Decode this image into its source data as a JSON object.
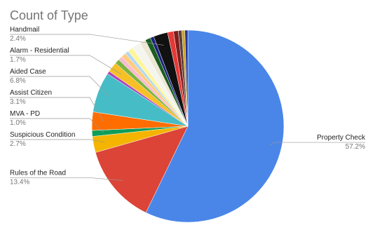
{
  "chart_data": {
    "type": "pie",
    "title": "Count of Type",
    "categories": [
      "Property Check",
      "Rules of the Road",
      "Suspicious Condition",
      "MVA - PD",
      "Assist Citizen",
      "Aided Case",
      null,
      "Alarm - Residential",
      null,
      null,
      null,
      null,
      null,
      null,
      null,
      null,
      null,
      "Handmail",
      null,
      null,
      null,
      null,
      null
    ],
    "values": [
      57.2,
      13.4,
      2.7,
      1.0,
      3.1,
      6.8,
      0.5,
      1.7,
      0.8,
      0.7,
      0.8,
      0.6,
      0.9,
      1.5,
      1.0,
      0.9,
      0.6,
      2.4,
      1.0,
      0.8,
      0.6,
      0.5,
      0.5
    ],
    "value_labels": [
      "57.2%",
      "13.4%",
      "2.7%",
      "1.0%",
      "3.1%",
      "6.8%",
      null,
      "1.7%",
      null,
      null,
      null,
      null,
      null,
      null,
      null,
      null,
      null,
      "2.4%",
      null,
      null,
      null,
      null,
      null
    ],
    "colors": [
      "#4a86e8",
      "#db4437",
      "#f4b400",
      "#0f9d58",
      "#ff6d00",
      "#46bdc6",
      "#ab47bc",
      "#f6c026",
      "#7cb342",
      "#f8bbd0",
      "#ffcc80",
      "#b3d9f2",
      "#fff59d",
      "#f5f5f0",
      "#ede7d3",
      "#1b5e20",
      "#1a237e",
      "#111111",
      "#e53935",
      "#7f1d1d",
      "#5d4037",
      "#c9a227",
      "#283593"
    ]
  }
}
